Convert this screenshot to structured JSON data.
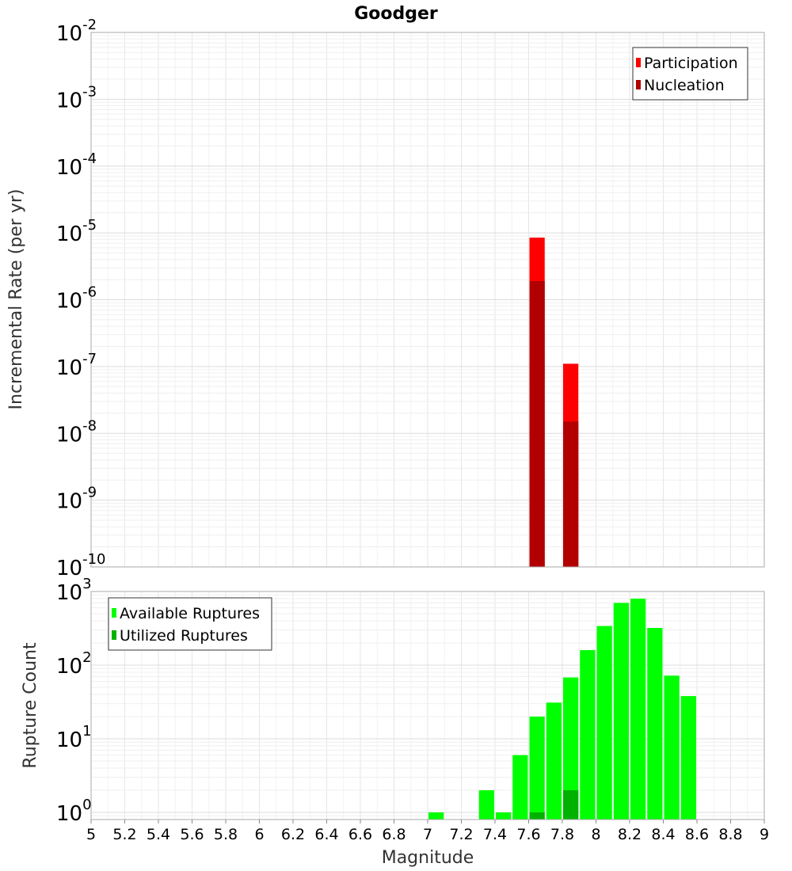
{
  "chart_data": [
    {
      "type": "bar",
      "title": "Goodger",
      "xlabel": "",
      "ylabel": "Incremental Rate (per yr)",
      "yscale": "log",
      "xlim": [
        5,
        9
      ],
      "ylim": [
        1e-10,
        0.01
      ],
      "y_ticks": [
        {
          "base": "10",
          "exp": "-2"
        },
        {
          "base": "10",
          "exp": "-3"
        },
        {
          "base": "10",
          "exp": "-4"
        },
        {
          "base": "10",
          "exp": "-5"
        },
        {
          "base": "10",
          "exp": "-6"
        },
        {
          "base": "10",
          "exp": "-7"
        },
        {
          "base": "10",
          "exp": "-8"
        },
        {
          "base": "10",
          "exp": "-9"
        },
        {
          "base": "10",
          "exp": "-10"
        }
      ],
      "legend_position": "top-right",
      "grid": true,
      "series": [
        {
          "name": "Participation",
          "color": "#ff0000",
          "x": [
            7.65,
            7.85
          ],
          "values": [
            8.5e-06,
            1.1e-07
          ]
        },
        {
          "name": "Nucleation",
          "color": "#b20000",
          "x": [
            7.65,
            7.85
          ],
          "values": [
            1.9e-06,
            1.5e-08
          ]
        }
      ]
    },
    {
      "type": "bar",
      "title": "",
      "xlabel": "Magnitude",
      "ylabel": "Rupture Count",
      "yscale": "log",
      "xlim": [
        5,
        9
      ],
      "ylim": [
        0.8,
        1000
      ],
      "x_ticks": [
        "5",
        "5.2",
        "5.4",
        "5.6",
        "5.8",
        "6",
        "6.2",
        "6.4",
        "6.6",
        "6.8",
        "7",
        "7.2",
        "7.4",
        "7.6",
        "7.8",
        "8",
        "8.2",
        "8.4",
        "8.6",
        "8.8",
        "9"
      ],
      "y_ticks": [
        {
          "base": "10",
          "exp": "3"
        },
        {
          "base": "10",
          "exp": "2"
        },
        {
          "base": "10",
          "exp": "1"
        },
        {
          "base": "10",
          "exp": "0"
        }
      ],
      "legend_position": "top-left",
      "grid": true,
      "series": [
        {
          "name": "Available Ruptures",
          "color": "#00ff00",
          "x": [
            7.05,
            7.35,
            7.45,
            7.55,
            7.65,
            7.75,
            7.85,
            7.95,
            8.05,
            8.15,
            8.25,
            8.35,
            8.45,
            8.55
          ],
          "values": [
            1,
            2,
            1,
            6,
            20,
            31,
            68,
            160,
            340,
            700,
            800,
            320,
            72,
            38
          ]
        },
        {
          "name": "Utilized Ruptures",
          "color": "#00b200",
          "x": [
            7.65,
            7.85
          ],
          "values": [
            1,
            2
          ]
        }
      ]
    }
  ]
}
